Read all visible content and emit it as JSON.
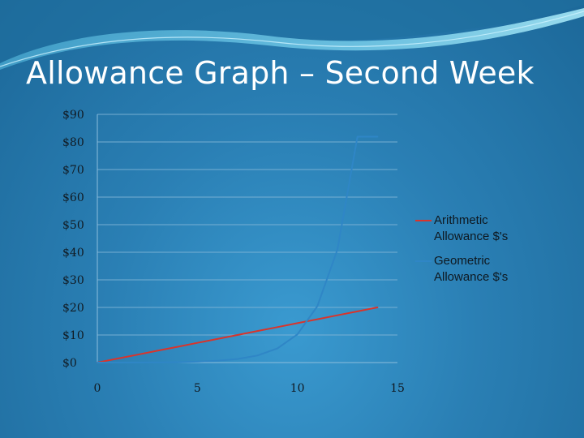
{
  "slide": {
    "title": "Allowance Graph – Second Week"
  },
  "chart_data": {
    "type": "line",
    "title": "",
    "xlabel": "",
    "ylabel": "",
    "xlim": [
      0,
      15
    ],
    "ylim": [
      0,
      90
    ],
    "x_ticks": [
      0,
      5,
      10,
      15
    ],
    "x_tick_labels": [
      "0",
      "5",
      "10",
      "15"
    ],
    "y_ticks": [
      0,
      10,
      20,
      30,
      40,
      50,
      60,
      70,
      80,
      90
    ],
    "y_tick_labels": [
      "$0",
      "$10",
      "$20",
      "$30",
      "$40",
      "$50",
      "$60",
      "$70",
      "$80",
      "$90"
    ],
    "grid": "horizontal",
    "legend_position": "right",
    "series": [
      {
        "name": "Arithmetic Allowance $'s",
        "color": "#d9342b",
        "x": [
          0,
          1,
          2,
          3,
          4,
          5,
          6,
          7,
          8,
          9,
          10,
          11,
          12,
          13,
          14
        ],
        "y": [
          0,
          1.43,
          2.86,
          4.29,
          5.71,
          7.14,
          8.57,
          10,
          11.43,
          12.86,
          14.29,
          15.71,
          17.14,
          18.57,
          20
        ]
      },
      {
        "name": "Geometric Allowance $'s",
        "color": "#2f86c6",
        "x": [
          0,
          1,
          2,
          3,
          4,
          5,
          6,
          7,
          8,
          9,
          10,
          11,
          12,
          13,
          14
        ],
        "y": [
          0.01,
          0.02,
          0.04,
          0.08,
          0.16,
          0.32,
          0.64,
          1.28,
          2.56,
          5.12,
          10.24,
          20.48,
          40.96,
          81.92,
          81.92
        ]
      }
    ]
  }
}
